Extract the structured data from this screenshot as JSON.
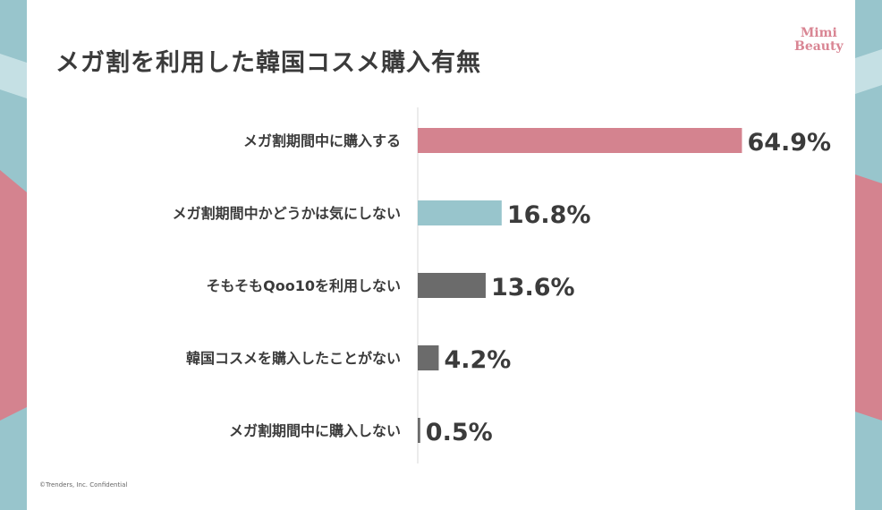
{
  "title": "メガ割を利用した韓国コスメ購入有無",
  "logo": {
    "line1": "Mimi",
    "line2": "Beauty"
  },
  "footer": "©Trenders, Inc.  Confidential",
  "colors": {
    "pink": "#d4838f",
    "teal": "#98c5cc",
    "gray": "#6b6b6b",
    "text": "#3b3b3b"
  },
  "chart_data": {
    "type": "bar",
    "orientation": "horizontal",
    "categories": [
      "メガ割期間中に購入する",
      "メガ割期間中かどうかは気にしない",
      "そもそもQoo10を利用しない",
      "韓国コスメを購入したことがない",
      "メガ割期間中に購入しない"
    ],
    "values": [
      64.9,
      16.8,
      13.6,
      4.2,
      0.5
    ],
    "data_labels": [
      "64.9%",
      "16.8%",
      "13.6%",
      "4.2%",
      "0.5%"
    ],
    "bar_colors": [
      "#d4838f",
      "#98c5cc",
      "#6b6b6b",
      "#6b6b6b",
      "#6b6b6b"
    ],
    "xlim": [
      0,
      65
    ],
    "grid": false,
    "legend": "none"
  }
}
